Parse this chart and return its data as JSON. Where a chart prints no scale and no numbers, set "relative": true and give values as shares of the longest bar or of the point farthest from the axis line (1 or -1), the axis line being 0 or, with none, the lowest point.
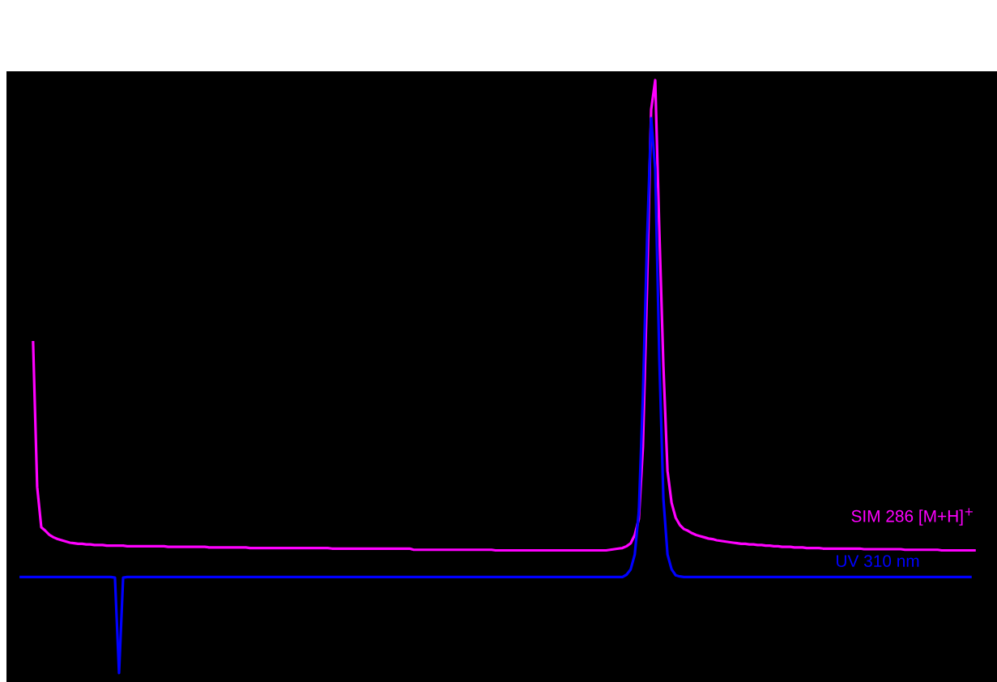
{
  "chart_data": {
    "type": "line",
    "relative": true,
    "legend": false,
    "grid": false,
    "tick_labels": false,
    "categories": [
      null,
      null,
      null,
      null,
      null,
      null,
      null,
      null,
      null,
      null,
      null,
      null,
      null,
      null,
      null,
      null,
      null,
      null,
      null,
      null,
      null,
      null,
      null,
      null,
      null,
      null,
      null,
      null,
      null,
      null,
      null,
      null,
      null,
      null,
      null,
      null,
      null,
      null,
      null,
      null,
      null,
      null,
      null,
      null,
      null,
      null,
      null,
      null,
      null,
      null,
      null,
      null,
      null,
      null,
      null,
      null,
      null,
      null,
      null,
      null,
      null,
      null,
      null,
      null,
      null,
      null,
      null,
      null,
      null,
      null,
      null,
      null,
      null,
      null,
      null,
      null,
      null,
      null,
      null,
      null,
      null,
      null,
      null,
      null,
      null,
      null,
      null,
      null,
      null,
      null,
      null,
      null,
      null,
      null,
      null,
      null,
      null,
      null,
      null,
      null,
      null,
      null,
      null,
      null,
      null,
      null,
      null,
      null,
      null,
      null,
      null,
      null,
      null,
      null,
      null,
      null,
      null,
      null,
      null,
      null,
      null,
      null,
      null,
      null,
      null,
      null,
      null,
      null,
      null,
      null,
      null,
      null,
      null,
      null,
      null,
      null,
      null,
      null,
      null,
      null,
      null,
      null,
      null,
      null,
      null,
      null,
      null,
      null,
      null,
      null,
      null,
      null,
      null,
      null,
      null,
      null,
      null,
      null,
      null,
      null,
      null,
      null,
      null,
      null,
      null,
      null,
      null,
      null,
      null,
      null,
      null,
      null,
      null,
      null,
      null,
      null,
      null,
      null,
      null,
      null,
      null,
      null,
      null,
      null,
      null,
      null,
      null,
      null,
      null,
      null,
      null,
      null,
      null,
      null,
      null,
      null,
      null,
      null,
      null,
      null,
      null,
      null,
      null,
      null,
      null,
      null,
      null,
      null,
      null,
      null,
      null,
      null,
      null,
      null,
      null,
      null,
      null,
      null,
      null,
      null,
      null,
      null,
      null,
      null,
      null,
      null,
      null,
      null,
      null,
      null,
      null,
      null,
      null,
      null
    ],
    "series": [
      {
        "name": "SIM 286 [M+H]$^{+}$",
        "color": "#ff00ff",
        "values": [
          null,
          null,
          null,
          0.558,
          0.314,
          0.246,
          0.24,
          0.233,
          0.229,
          0.226,
          0.224,
          0.222,
          0.22,
          0.219,
          0.218,
          0.218,
          0.217,
          0.217,
          0.216,
          0.216,
          0.216,
          0.215,
          0.215,
          0.215,
          0.215,
          0.215,
          0.214,
          0.214,
          0.214,
          0.214,
          0.214,
          0.214,
          0.214,
          0.214,
          0.214,
          0.214,
          0.213,
          0.213,
          0.213,
          0.213,
          0.213,
          0.213,
          0.213,
          0.213,
          0.213,
          0.213,
          0.212,
          0.212,
          0.212,
          0.212,
          0.212,
          0.212,
          0.212,
          0.212,
          0.212,
          0.212,
          0.211,
          0.211,
          0.211,
          0.211,
          0.211,
          0.211,
          0.211,
          0.211,
          0.211,
          0.211,
          0.211,
          0.211,
          0.211,
          0.211,
          0.211,
          0.211,
          0.211,
          0.211,
          0.211,
          0.211,
          0.21,
          0.21,
          0.21,
          0.21,
          0.21,
          0.21,
          0.21,
          0.21,
          0.21,
          0.21,
          0.21,
          0.21,
          0.21,
          0.21,
          0.21,
          0.21,
          0.21,
          0.21,
          0.21,
          0.21,
          0.208,
          0.208,
          0.208,
          0.208,
          0.208,
          0.208,
          0.208,
          0.208,
          0.208,
          0.208,
          0.208,
          0.208,
          0.208,
          0.208,
          0.208,
          0.208,
          0.208,
          0.208,
          0.208,
          0.208,
          0.207,
          0.207,
          0.207,
          0.207,
          0.207,
          0.207,
          0.207,
          0.207,
          0.207,
          0.207,
          0.207,
          0.207,
          0.207,
          0.207,
          0.207,
          0.207,
          0.207,
          0.207,
          0.207,
          0.207,
          0.207,
          0.207,
          0.207,
          0.207,
          0.207,
          0.207,
          0.207,
          0.207,
          0.208,
          0.209,
          0.21,
          0.211,
          0.214,
          0.219,
          0.233,
          0.26,
          0.382,
          0.65,
          0.95,
          1.0,
          0.747,
          0.517,
          0.341,
          0.287,
          0.262,
          0.25,
          0.243,
          0.24,
          0.236,
          0.233,
          0.231,
          0.229,
          0.227,
          0.226,
          0.224,
          0.223,
          0.222,
          0.221,
          0.22,
          0.219,
          0.218,
          0.218,
          0.217,
          0.217,
          0.216,
          0.216,
          0.215,
          0.215,
          0.214,
          0.214,
          0.213,
          0.213,
          0.213,
          0.212,
          0.212,
          0.212,
          0.211,
          0.211,
          0.211,
          0.211,
          0.21,
          0.21,
          0.21,
          0.21,
          0.21,
          0.21,
          0.21,
          0.21,
          0.21,
          0.21,
          0.209,
          0.209,
          0.209,
          0.209,
          0.209,
          0.209,
          0.209,
          0.209,
          0.209,
          0.209,
          0.208,
          0.208,
          0.208,
          0.208,
          0.208,
          0.208,
          0.208,
          0.208,
          0.208,
          0.207,
          0.207,
          0.207,
          0.207,
          0.207,
          0.207,
          0.207,
          0.207,
          0.207
        ]
      },
      {
        "name": "UV 310 nm",
        "color": "#0000ff",
        "values": [
          0.162,
          0.162,
          0.162,
          0.162,
          0.162,
          0.162,
          0.162,
          0.162,
          0.162,
          0.162,
          0.162,
          0.162,
          0.162,
          0.162,
          0.162,
          0.162,
          0.162,
          0.162,
          0.162,
          0.162,
          0.162,
          0.162,
          0.162,
          0.161,
          0.0,
          0.161,
          0.162,
          0.162,
          0.162,
          0.162,
          0.162,
          0.162,
          0.162,
          0.162,
          0.162,
          0.162,
          0.162,
          0.162,
          0.162,
          0.162,
          0.162,
          0.162,
          0.162,
          0.162,
          0.162,
          0.162,
          0.162,
          0.162,
          0.162,
          0.162,
          0.162,
          0.162,
          0.162,
          0.162,
          0.162,
          0.162,
          0.162,
          0.162,
          0.162,
          0.162,
          0.162,
          0.162,
          0.162,
          0.162,
          0.162,
          0.162,
          0.162,
          0.162,
          0.162,
          0.162,
          0.162,
          0.162,
          0.162,
          0.162,
          0.162,
          0.162,
          0.162,
          0.162,
          0.162,
          0.162,
          0.162,
          0.162,
          0.162,
          0.162,
          0.162,
          0.162,
          0.162,
          0.162,
          0.162,
          0.162,
          0.162,
          0.162,
          0.162,
          0.162,
          0.162,
          0.162,
          0.162,
          0.162,
          0.162,
          0.162,
          0.162,
          0.162,
          0.162,
          0.162,
          0.162,
          0.162,
          0.162,
          0.162,
          0.162,
          0.162,
          0.162,
          0.162,
          0.162,
          0.162,
          0.162,
          0.162,
          0.162,
          0.162,
          0.162,
          0.162,
          0.162,
          0.162,
          0.162,
          0.162,
          0.162,
          0.162,
          0.162,
          0.162,
          0.162,
          0.162,
          0.162,
          0.162,
          0.162,
          0.162,
          0.162,
          0.162,
          0.162,
          0.162,
          0.162,
          0.162,
          0.162,
          0.162,
          0.162,
          0.162,
          0.162,
          0.162,
          0.162,
          0.162,
          0.166,
          0.175,
          0.2,
          0.273,
          0.47,
          0.73,
          0.936,
          0.85,
          0.53,
          0.294,
          0.2,
          0.175,
          0.165,
          0.163,
          0.162,
          0.162,
          0.162,
          0.162,
          0.162,
          0.162,
          0.162,
          0.162,
          0.162,
          0.162,
          0.162,
          0.162,
          0.162,
          0.162,
          0.162,
          0.162,
          0.162,
          0.162,
          0.162,
          0.162,
          0.162,
          0.162,
          0.162,
          0.162,
          0.162,
          0.162,
          0.162,
          0.162,
          0.162,
          0.162,
          0.162,
          0.162,
          0.162,
          0.162,
          0.162,
          0.162,
          0.162,
          0.162,
          0.162,
          0.162,
          0.162,
          0.162,
          0.162,
          0.162,
          0.162,
          0.162,
          0.162,
          0.162,
          0.162,
          0.162,
          0.162,
          0.162,
          0.162,
          0.162,
          0.162,
          0.162,
          0.162,
          0.162,
          0.162,
          0.162,
          0.162,
          0.162,
          0.162,
          0.162,
          0.162,
          0.162,
          0.162,
          0.162,
          0.162,
          0.162,
          0.162,
          null
        ]
      }
    ]
  }
}
